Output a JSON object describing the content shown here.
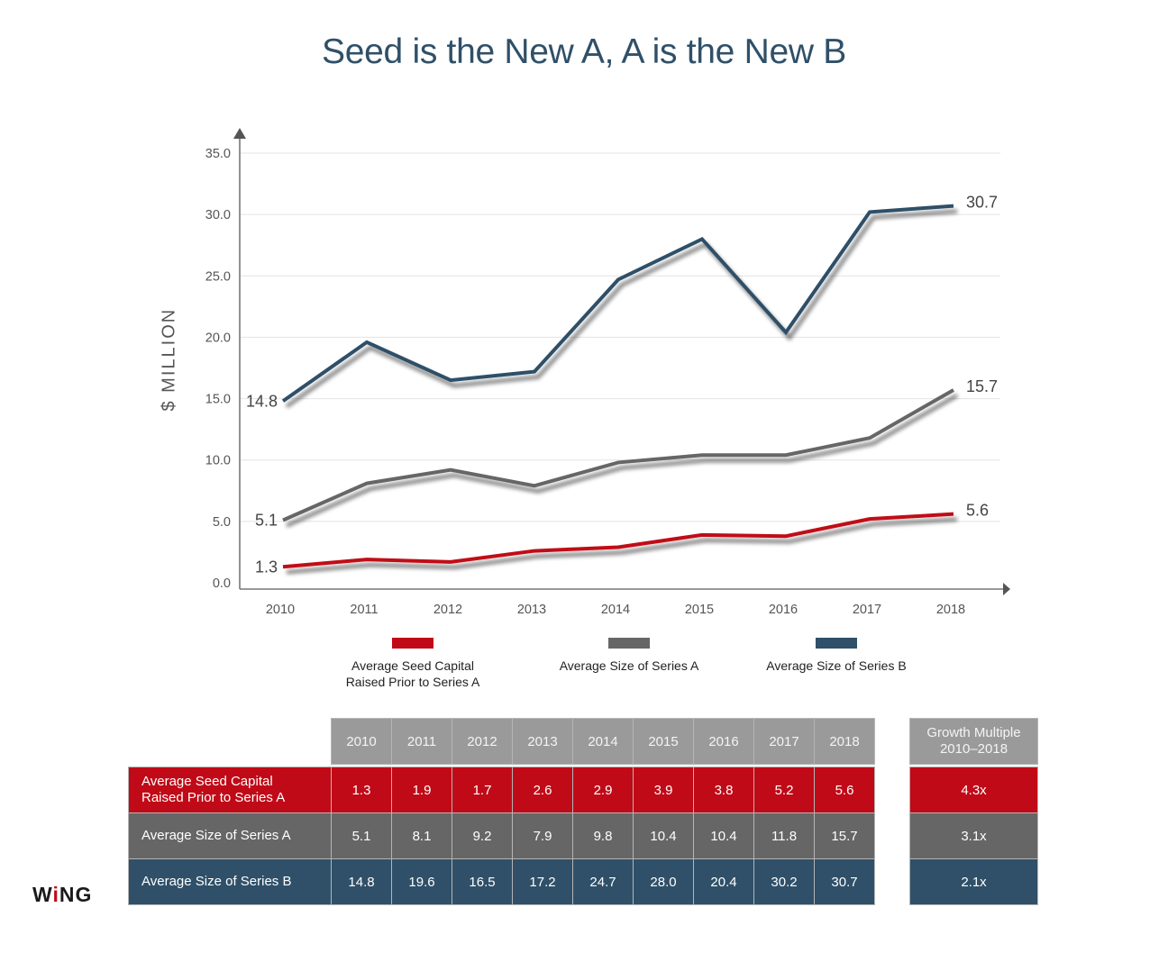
{
  "title": "Seed is the New A, A is the New B",
  "colors": {
    "title": "#2f5068",
    "seed": "#c00a17",
    "series_a": "#666666",
    "series_b": "#2f5068",
    "reference": "#16948f",
    "grid": "#e3e3e3",
    "axis": "#777777",
    "table_header": "#9a9a9a"
  },
  "chart_data": {
    "type": "line",
    "title": "Seed is the New A, A is the New B",
    "xlabel": "",
    "ylabel": "$ MILLION",
    "x": [
      "2010",
      "2011",
      "2012",
      "2013",
      "2014",
      "2015",
      "2016",
      "2017",
      "2018"
    ],
    "ylim": [
      0,
      35
    ],
    "yticks": [
      "0.0",
      "5.0",
      "10.0",
      "15.0",
      "20.0",
      "25.0",
      "30.0",
      "35.0"
    ],
    "ytick_values": [
      0,
      5,
      10,
      15,
      20,
      25,
      30,
      35
    ],
    "grid": true,
    "legend_position": "bottom",
    "series": [
      {
        "key": "seed",
        "name": "Average Seed Capital Raised Prior to Series A",
        "color": "#c00a17",
        "values": [
          1.3,
          1.9,
          1.7,
          2.6,
          2.9,
          3.9,
          3.8,
          5.2,
          5.6
        ],
        "start_label": "1.3",
        "end_label": "5.6"
      },
      {
        "key": "series_a",
        "name": "Average Size of Series A",
        "color": "#666666",
        "values": [
          5.1,
          8.1,
          9.2,
          7.9,
          9.8,
          10.4,
          10.4,
          11.8,
          15.7
        ],
        "start_label": "5.1",
        "end_label": "15.7"
      },
      {
        "key": "series_b",
        "name": "Average Size of Series B",
        "color": "#2f5068",
        "values": [
          14.8,
          19.6,
          16.5,
          17.2,
          24.7,
          28.0,
          20.4,
          30.2,
          30.7
        ],
        "start_label": "14.8",
        "end_label": "30.7"
      }
    ],
    "reference_lines": [
      {
        "value": 14.8,
        "style": "dashed",
        "color": "#16948f"
      },
      {
        "value": 5.1,
        "style": "dashed",
        "color": "#16948f"
      }
    ],
    "annotations": [
      "14.8",
      "5.1",
      "1.3",
      "30.7",
      "15.7",
      "5.6"
    ]
  },
  "legend": [
    {
      "label_line1": "Average Seed Capital",
      "label_line2": "Raised Prior to Series A",
      "color": "#c00a17"
    },
    {
      "label_line1": "Average Size of Series A",
      "label_line2": "",
      "color": "#666666"
    },
    {
      "label_line1": "Average Size of Series B",
      "label_line2": "",
      "color": "#2f5068"
    }
  ],
  "table": {
    "years": [
      "2010",
      "2011",
      "2012",
      "2013",
      "2014",
      "2015",
      "2016",
      "2017",
      "2018"
    ],
    "rows": [
      {
        "label_line1": "Average Seed Capital",
        "label_line2": "Raised Prior to Series A",
        "values": [
          "1.3",
          "1.9",
          "1.7",
          "2.6",
          "2.9",
          "3.9",
          "3.8",
          "5.2",
          "5.6"
        ],
        "growth": "4.3x"
      },
      {
        "label_line1": "Average Size of Series A",
        "label_line2": "",
        "values": [
          "5.1",
          "8.1",
          "9.2",
          "7.9",
          "9.8",
          "10.4",
          "10.4",
          "11.8",
          "15.7"
        ],
        "growth": "3.1x"
      },
      {
        "label_line1": "Average Size of Series B",
        "label_line2": "",
        "values": [
          "14.8",
          "19.6",
          "16.5",
          "17.2",
          "24.7",
          "28.0",
          "20.4",
          "30.2",
          "30.7"
        ],
        "growth": "2.1x"
      }
    ],
    "growth_header_line1": "Growth Multiple",
    "growth_header_line2": "2010–2018"
  },
  "logo": {
    "text_before": "W",
    "text_i": "i",
    "text_after": "NG"
  }
}
